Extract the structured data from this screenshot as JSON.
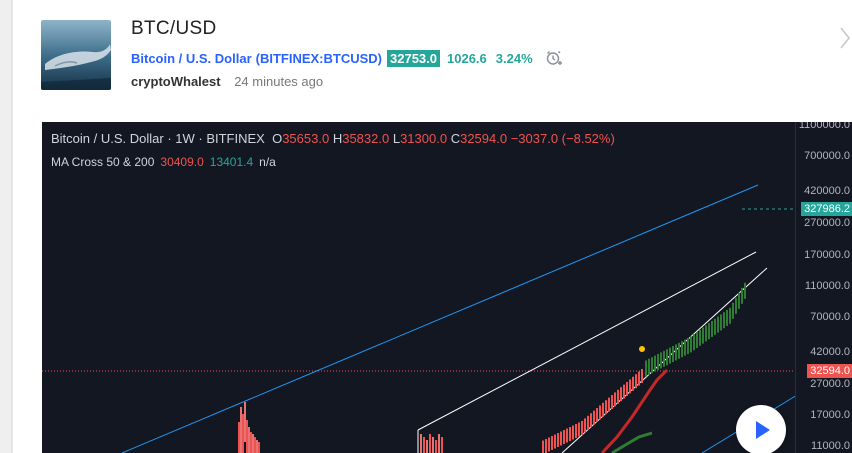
{
  "header": {
    "title": "BTC/USD",
    "instrument_name": "Bitcoin / U.S. Dollar",
    "symbol": "(BITFINEX:BTCUSD)",
    "price": "32753.0",
    "change": "1026.6",
    "change_pct": "3.24%",
    "author": "cryptoWhalest",
    "time_ago": "24 minutes ago"
  },
  "legend": {
    "instrument": "Bitcoin / U.S. Dollar",
    "interval": "1W",
    "exchange": "BITFINEX",
    "open_label": "O",
    "open": "35653.0",
    "high_label": "H",
    "high": "35832.0",
    "low_label": "L",
    "low": "31300.0",
    "close_label": "C",
    "close": "32594.0",
    "change": "−3037.0 (−8.52%)",
    "indicator_name": "MA Cross 50 & 200",
    "ma50": "30409.0",
    "ma200": "13401.4",
    "na": "n/a"
  },
  "price_axis": {
    "ticks": [
      "1100000.0",
      "700000.0",
      "420000.0",
      "270000.0",
      "170000.0",
      "110000.0",
      "70000.0",
      "42000.0",
      "27000.0",
      "17000.0",
      "11000.0"
    ],
    "projection_label": "327986.2",
    "last_price_label": "32594.0"
  },
  "colors": {
    "accent": "#2962ff",
    "positive": "#26a69a",
    "negative": "#ef5350",
    "chart_bg": "#131722"
  },
  "icons": {
    "alarm": "alarm-clock-plus-icon",
    "next": "chevron-right-icon",
    "play": "play-icon"
  }
}
